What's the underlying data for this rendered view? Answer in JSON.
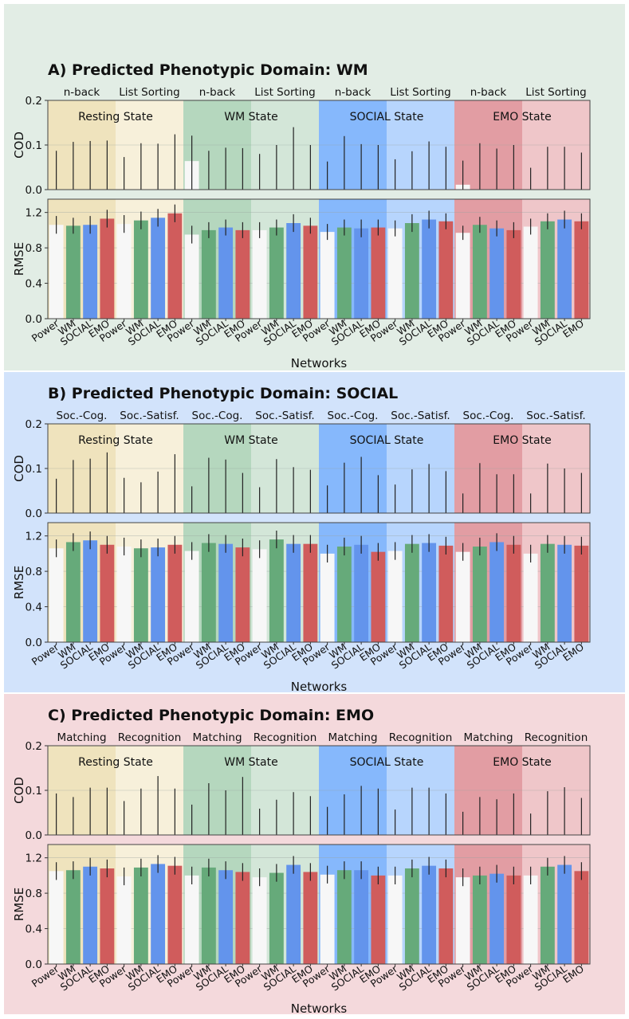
{
  "colors": {
    "panel_bg": [
      "#e2ede5",
      "#d2e3fb",
      "#f4d9dc"
    ],
    "state_bg": {
      "Resting State": [
        "#efe3bd",
        "#f7f0da"
      ],
      "WM State": [
        "#b5d7be",
        "#d3e6d8"
      ],
      "SOCIAL State": [
        "#86b8fc",
        "#b7d5fd"
      ],
      "EMO State": [
        "#e29da3",
        "#efc6c9"
      ]
    },
    "bars": {
      "Power": "#f7f7f7",
      "WM": "#66aa7a",
      "SOCIAL": "#6394ec",
      "EMO": "#d05c5c"
    }
  },
  "chart_data": [
    {
      "type": "bar",
      "panel_title": "A) Predicted Phenotypic Domain: WM",
      "states": [
        "Resting State",
        "WM State",
        "SOCIAL State",
        "EMO State"
      ],
      "tasks": [
        "n-back",
        "List Sorting"
      ],
      "categories": [
        "Power",
        "WM",
        "SOCIAL",
        "EMO"
      ],
      "xlabel": "Networks",
      "cod": {
        "ylabel": "COD",
        "ylim": [
          0,
          0.2
        ],
        "ticks": [
          "0.0",
          "0.1",
          "0.2"
        ],
        "values": [
          0,
          0,
          0,
          0,
          0,
          0,
          0,
          0,
          0.064,
          0,
          0,
          0,
          0,
          0,
          0,
          0,
          0,
          0,
          0,
          0,
          0,
          0,
          0,
          0,
          0.011,
          0,
          0,
          0,
          0,
          0,
          0,
          0
        ],
        "err_top": [
          0.087,
          0.107,
          0.109,
          0.11,
          0.073,
          0.104,
          0.103,
          0.124,
          0.121,
          0.087,
          0.094,
          0.093,
          0.08,
          0.1,
          0.14,
          0.1,
          0.063,
          0.12,
          0.102,
          0.1,
          0.068,
          0.086,
          0.108,
          0.096,
          0.065,
          0.104,
          0.092,
          0.1,
          0.049,
          0.096,
          0.096,
          0.083
        ]
      },
      "rmse": {
        "ylabel": "RMSE",
        "ylim": [
          0,
          1.35
        ],
        "ticks": [
          "0.0",
          "0.4",
          "0.8",
          "1.2"
        ],
        "values": [
          1.06,
          1.05,
          1.06,
          1.13,
          1.07,
          1.11,
          1.14,
          1.19,
          0.95,
          1.0,
          1.03,
          1.0,
          1.0,
          1.03,
          1.08,
          1.05,
          0.98,
          1.03,
          1.02,
          1.03,
          1.02,
          1.08,
          1.12,
          1.1,
          0.97,
          1.06,
          1.02,
          1.0,
          1.04,
          1.1,
          1.12,
          1.1
        ],
        "err": [
          0.1,
          0.09,
          0.1,
          0.1,
          0.1,
          0.1,
          0.1,
          0.1,
          0.1,
          0.09,
          0.09,
          0.09,
          0.09,
          0.09,
          0.1,
          0.09,
          0.09,
          0.09,
          0.1,
          0.09,
          0.09,
          0.1,
          0.1,
          0.09,
          0.08,
          0.09,
          0.09,
          0.09,
          0.09,
          0.09,
          0.1,
          0.09
        ]
      }
    },
    {
      "type": "bar",
      "panel_title": "B) Predicted Phenotypic Domain: SOCIAL",
      "states": [
        "Resting State",
        "WM State",
        "SOCIAL State",
        "EMO State"
      ],
      "tasks": [
        "Soc.-Cog.",
        "Soc.-Satisf."
      ],
      "categories": [
        "Power",
        "WM",
        "SOCIAL",
        "EMO"
      ],
      "xlabel": "Networks",
      "cod": {
        "ylabel": "COD",
        "ylim": [
          0,
          0.2
        ],
        "ticks": [
          "0.0",
          "0.1",
          "0.2"
        ],
        "values": [
          0,
          0,
          0,
          0,
          0,
          0,
          0,
          0,
          0,
          0,
          0,
          0,
          0,
          0,
          0,
          0,
          0,
          0,
          0,
          0,
          0,
          0,
          0,
          0,
          0,
          0,
          0,
          0,
          0,
          0,
          0,
          0
        ],
        "err_top": [
          0.077,
          0.119,
          0.122,
          0.136,
          0.079,
          0.069,
          0.093,
          0.132,
          0.06,
          0.124,
          0.12,
          0.09,
          0.058,
          0.121,
          0.103,
          0.097,
          0.062,
          0.113,
          0.126,
          0.085,
          0.064,
          0.098,
          0.11,
          0.094,
          0.044,
          0.112,
          0.087,
          0.087,
          0.044,
          0.111,
          0.1,
          0.09
        ]
      },
      "rmse": {
        "ylabel": "RMSE",
        "ylim": [
          0,
          1.35
        ],
        "ticks": [
          "0.0",
          "0.4",
          "0.8",
          "1.2"
        ],
        "values": [
          1.06,
          1.13,
          1.15,
          1.1,
          1.08,
          1.06,
          1.07,
          1.1,
          1.03,
          1.12,
          1.11,
          1.07,
          1.05,
          1.16,
          1.11,
          1.11,
          1.0,
          1.08,
          1.1,
          1.02,
          1.03,
          1.11,
          1.12,
          1.09,
          1.02,
          1.08,
          1.13,
          1.1,
          1.0,
          1.11,
          1.1,
          1.09
        ]
      }
    },
    {
      "type": "bar",
      "panel_title": "C) Predicted Phenotypic Domain: EMO",
      "states": [
        "Resting State",
        "WM State",
        "SOCIAL State",
        "EMO State"
      ],
      "tasks": [
        "Matching",
        "Recognition"
      ],
      "categories": [
        "Power",
        "WM",
        "SOCIAL",
        "EMO"
      ],
      "xlabel": "Networks",
      "cod": {
        "ylabel": "COD",
        "ylim": [
          0,
          0.2
        ],
        "ticks": [
          "0.0",
          "0.1",
          "0.2"
        ],
        "values": [
          0,
          0,
          0,
          0,
          0,
          0,
          0,
          0,
          0,
          0,
          0,
          0,
          0,
          0,
          0,
          0,
          0,
          0,
          0,
          0,
          0,
          0,
          0,
          0,
          0,
          0,
          0,
          0,
          0,
          0,
          0,
          0
        ],
        "err_top": [
          0.093,
          0.085,
          0.106,
          0.106,
          0.076,
          0.104,
          0.132,
          0.104,
          0.068,
          0.116,
          0.1,
          0.13,
          0.059,
          0.079,
          0.096,
          0.087,
          0.063,
          0.091,
          0.11,
          0.104,
          0.057,
          0.106,
          0.106,
          0.093,
          0.052,
          0.085,
          0.08,
          0.093,
          0.048,
          0.098,
          0.107,
          0.083
        ]
      },
      "rmse": {
        "ylabel": "RMSE",
        "ylim": [
          0,
          1.35
        ],
        "ticks": [
          "0.0",
          "0.4",
          "0.8",
          "1.2"
        ],
        "values": [
          1.05,
          1.06,
          1.1,
          1.08,
          0.99,
          1.09,
          1.13,
          1.11,
          1.0,
          1.09,
          1.06,
          1.04,
          0.98,
          1.03,
          1.12,
          1.04,
          1.01,
          1.06,
          1.06,
          1.0,
          1.0,
          1.08,
          1.11,
          1.08,
          0.98,
          1.0,
          1.02,
          1.0,
          1.0,
          1.1,
          1.12,
          1.05
        ]
      }
    }
  ]
}
